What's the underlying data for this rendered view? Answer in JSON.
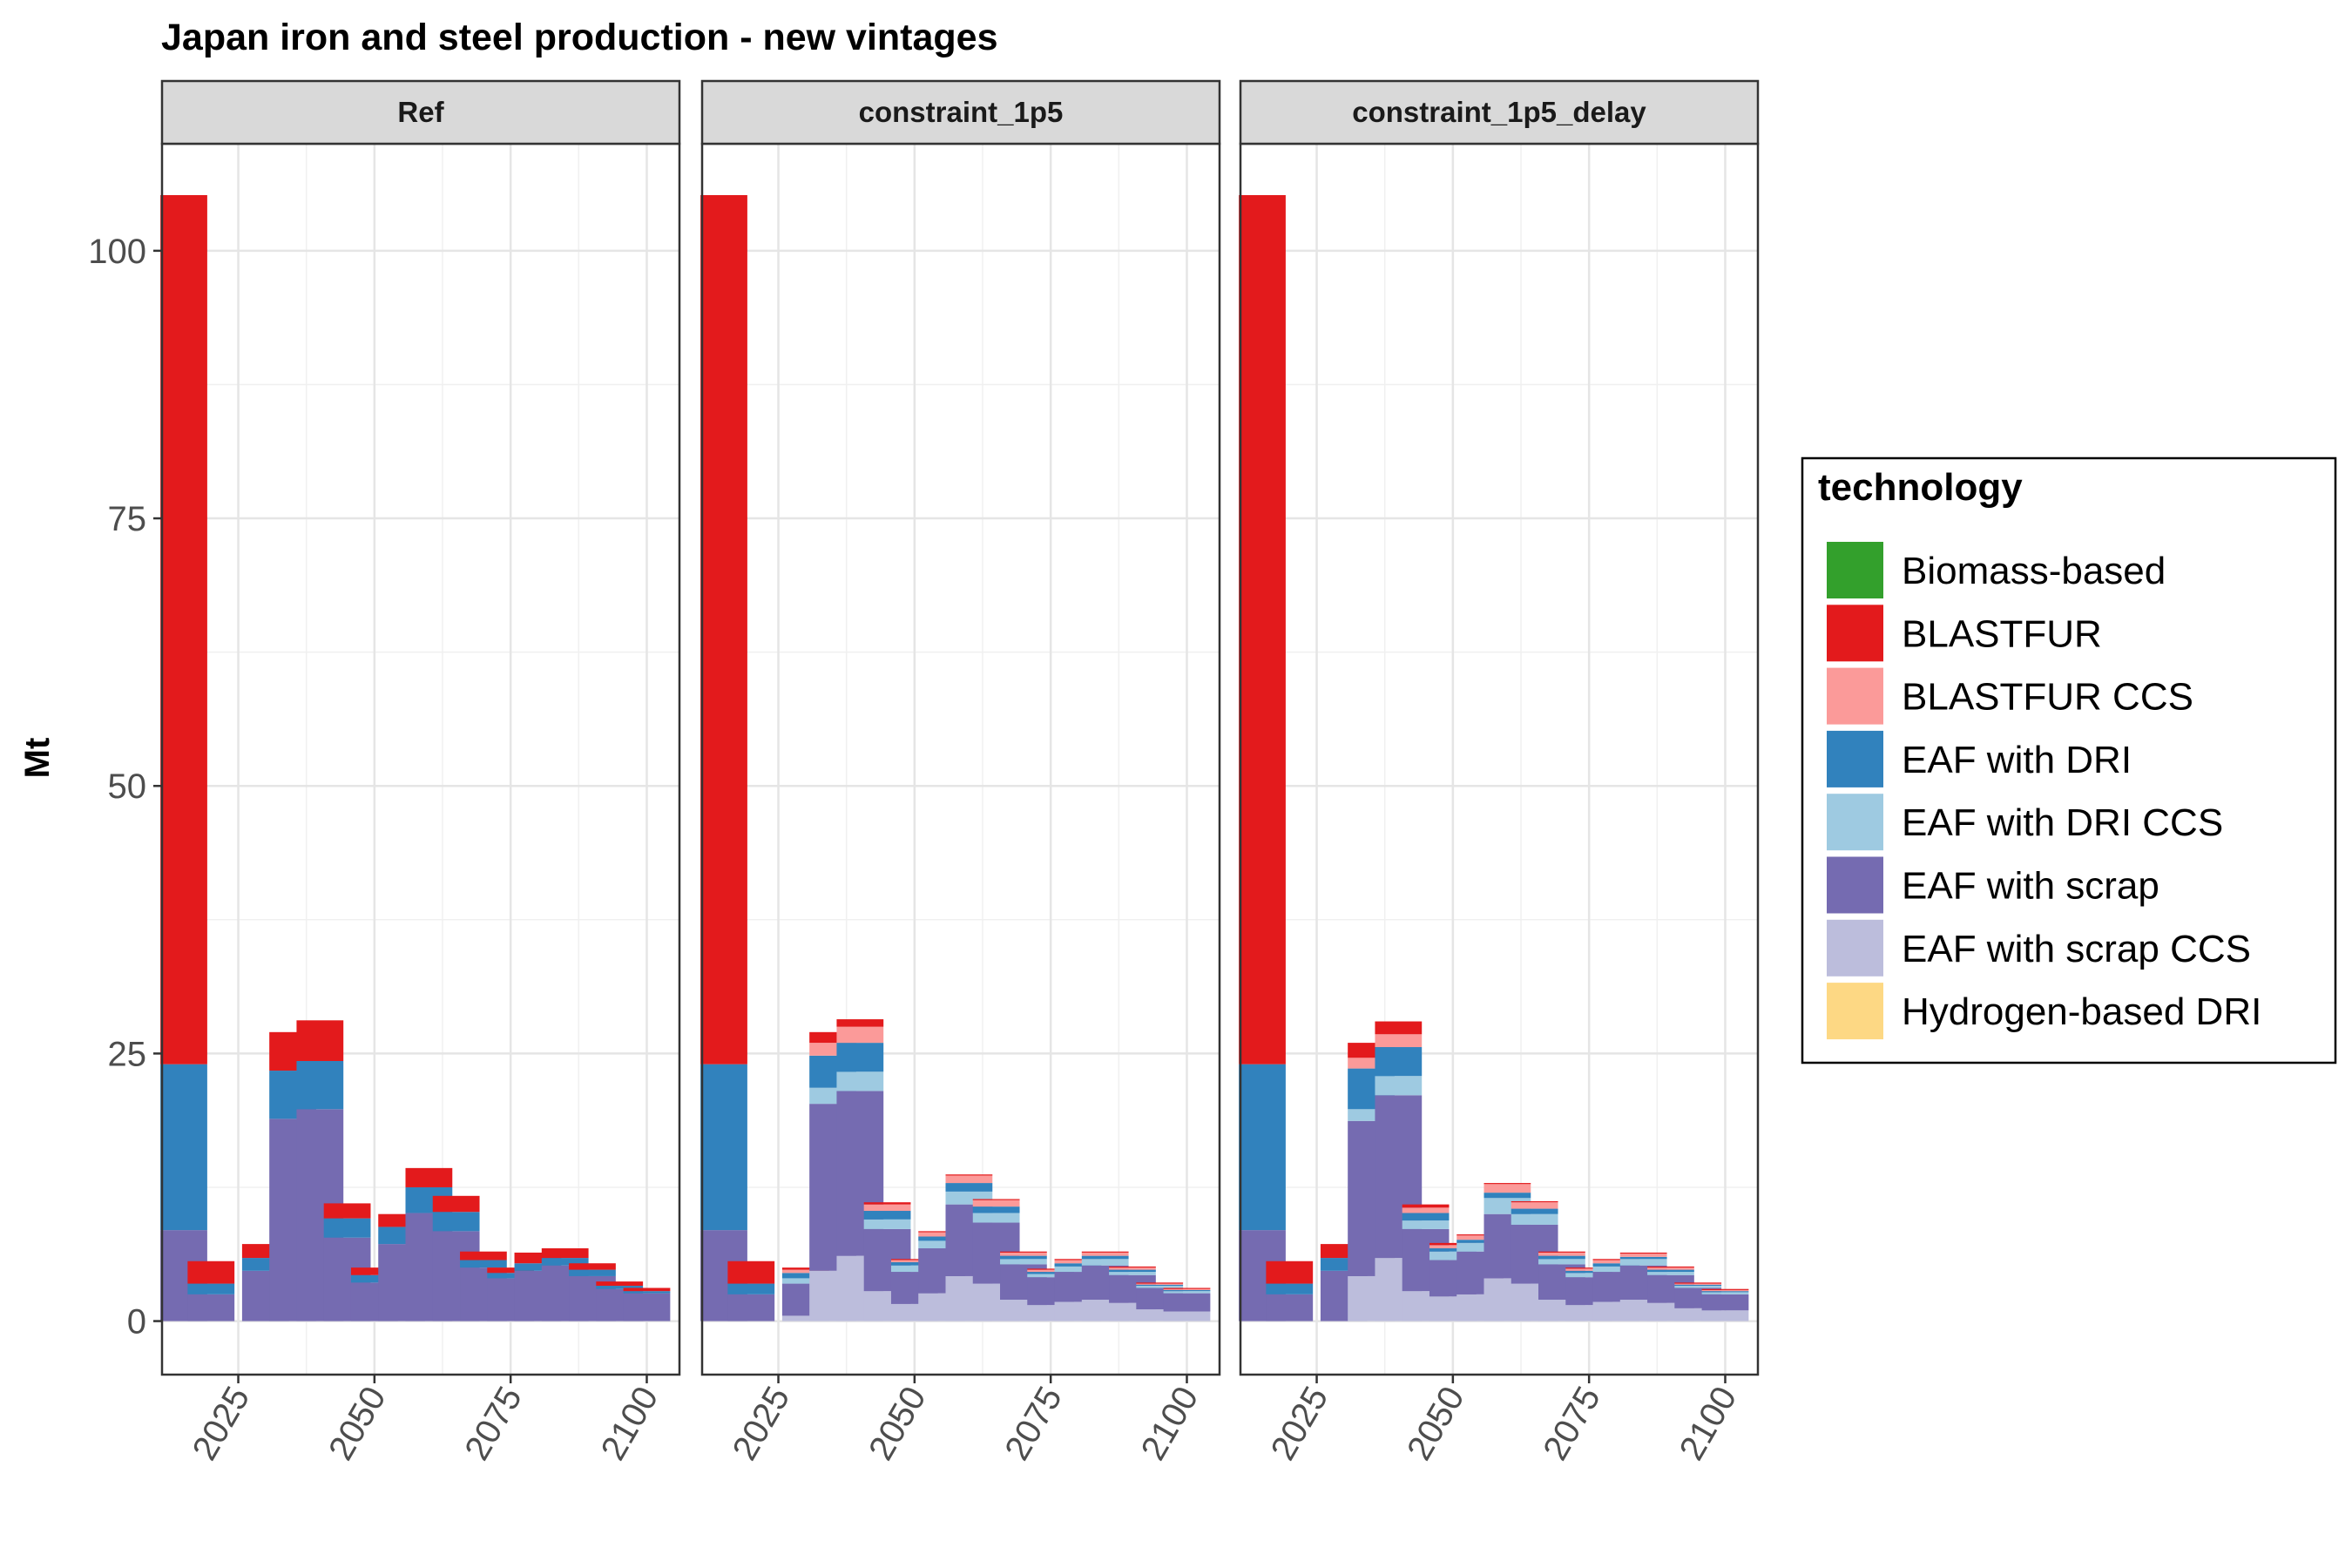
{
  "chart_data": {
    "type": "bar",
    "stacked": true,
    "faceted": true,
    "title": "Japan iron and steel production - new vintages",
    "ylabel": "Mt",
    "xlabel": "",
    "ylim": [
      -5,
      110
    ],
    "yticks": [
      0,
      25,
      50,
      75,
      100
    ],
    "xlim": [
      2011,
      2106
    ],
    "xticks": [
      2025,
      2050,
      2075,
      2100
    ],
    "grid": true,
    "legend_title": "technology",
    "legend_position": "right",
    "technologies": [
      {
        "name": "Biomass-based",
        "color": "#33a02c"
      },
      {
        "name": "BLASTFUR",
        "color": "#e31a1c"
      },
      {
        "name": "BLASTFUR CCS",
        "color": "#fb9a99"
      },
      {
        "name": "EAF with DRI",
        "color": "#3182bd"
      },
      {
        "name": "EAF with DRI CCS",
        "color": "#9ecae1"
      },
      {
        "name": "EAF with scrap",
        "color": "#756bb1"
      },
      {
        "name": "EAF with scrap CCS",
        "color": "#bcbddc"
      },
      {
        "name": "Hydrogen-based DRI",
        "color": "#fdd884"
      }
    ],
    "stack_order": [
      "EAF with scrap CCS",
      "EAF with scrap",
      "EAF with DRI CCS",
      "EAF with DRI",
      "BLASTFUR CCS",
      "BLASTFUR",
      "Biomass-based",
      "Hydrogen-based DRI"
    ],
    "x": [
      2015,
      2020,
      2030,
      2035,
      2040,
      2045,
      2050,
      2055,
      2060,
      2065,
      2070,
      2075,
      2080,
      2085,
      2090,
      2095,
      2100
    ],
    "panels": [
      {
        "name": "Ref",
        "series": [
          {
            "name": "EAF with scrap CCS",
            "values": [
              0,
              0,
              0,
              0,
              0,
              0,
              0,
              0,
              0,
              0,
              0,
              0,
              0,
              0,
              0,
              0,
              0
            ]
          },
          {
            "name": "EAF with scrap",
            "values": [
              8.5,
              2.5,
              4.7,
              18.9,
              19.8,
              7.8,
              3.6,
              7.2,
              10.1,
              8.4,
              5.0,
              4.0,
              4.7,
              5.2,
              4.2,
              3.0,
              2.6
            ]
          },
          {
            "name": "EAF with DRI CCS",
            "values": [
              0,
              0,
              0,
              0,
              0,
              0,
              0,
              0,
              0,
              0,
              0,
              0,
              0,
              0,
              0,
              0,
              0
            ]
          },
          {
            "name": "EAF with DRI",
            "values": [
              15.5,
              1.0,
              1.2,
              4.5,
              4.5,
              1.8,
              0.7,
              1.6,
              2.4,
              1.8,
              0.7,
              0.5,
              0.7,
              0.7,
              0.6,
              0.3,
              0.2
            ]
          },
          {
            "name": "BLASTFUR CCS",
            "values": [
              0,
              0,
              0,
              0,
              0,
              0,
              0,
              0,
              0,
              0,
              0,
              0,
              0,
              0,
              0,
              0,
              0
            ]
          },
          {
            "name": "BLASTFUR",
            "values": [
              81.2,
              2.1,
              1.3,
              3.6,
              3.8,
              1.4,
              0.7,
              1.2,
              1.8,
              1.5,
              0.8,
              0.5,
              1.0,
              0.9,
              0.6,
              0.4,
              0.3
            ]
          },
          {
            "name": "Biomass-based",
            "values": [
              0,
              0,
              0,
              0,
              0,
              0,
              0,
              0,
              0,
              0,
              0,
              0,
              0,
              0,
              0,
              0,
              0
            ]
          },
          {
            "name": "Hydrogen-based DRI",
            "values": [
              0,
              0,
              0,
              0,
              0,
              0,
              0,
              0,
              0,
              0,
              0,
              0,
              0,
              0,
              0,
              0,
              0
            ]
          }
        ]
      },
      {
        "name": "constraint_1p5",
        "series": [
          {
            "name": "EAF with scrap CCS",
            "values": [
              0,
              0,
              0.5,
              4.7,
              6.1,
              2.8,
              1.6,
              2.6,
              4.2,
              3.5,
              2.0,
              1.5,
              1.8,
              2.0,
              1.7,
              1.1,
              0.9
            ]
          },
          {
            "name": "EAF with scrap",
            "values": [
              8.5,
              2.5,
              3.0,
              15.6,
              15.4,
              5.8,
              3.0,
              4.2,
              6.7,
              5.7,
              3.3,
              2.6,
              2.8,
              3.2,
              2.6,
              2.0,
              1.7
            ]
          },
          {
            "name": "EAF with DRI CCS",
            "values": [
              0,
              0,
              0.5,
              1.5,
              1.8,
              0.9,
              0.6,
              0.7,
              1.2,
              0.9,
              0.5,
              0.3,
              0.5,
              0.6,
              0.3,
              0.2,
              0.2
            ]
          },
          {
            "name": "EAF with DRI",
            "values": [
              15.5,
              1.0,
              0.5,
              3.0,
              2.7,
              0.8,
              0.3,
              0.4,
              0.8,
              0.6,
              0.3,
              0.2,
              0.3,
              0.3,
              0.2,
              0.1,
              0.1
            ]
          },
          {
            "name": "BLASTFUR CCS",
            "values": [
              0,
              0,
              0.3,
              1.2,
              1.5,
              0.6,
              0.2,
              0.4,
              0.7,
              0.6,
              0.3,
              0.2,
              0.3,
              0.3,
              0.2,
              0.1,
              0.1
            ]
          },
          {
            "name": "BLASTFUR",
            "values": [
              81.2,
              2.1,
              0.2,
              1.0,
              0.7,
              0.2,
              0.1,
              0.1,
              0.1,
              0.1,
              0.1,
              0.1,
              0.1,
              0.1,
              0.1,
              0.1,
              0.1
            ]
          },
          {
            "name": "Biomass-based",
            "values": [
              0,
              0,
              0,
              0,
              0,
              0,
              0,
              0,
              0,
              0,
              0,
              0,
              0,
              0,
              0,
              0,
              0
            ]
          },
          {
            "name": "Hydrogen-based DRI",
            "values": [
              0,
              0,
              0,
              0,
              0,
              0,
              0,
              0,
              0,
              0,
              0,
              0,
              0,
              0,
              0,
              0,
              0
            ]
          }
        ]
      },
      {
        "name": "constraint_1p5_delay",
        "series": [
          {
            "name": "EAF with scrap CCS",
            "values": [
              0,
              0,
              0,
              4.2,
              5.9,
              2.8,
              2.3,
              2.5,
              4.0,
              3.5,
              2.0,
              1.5,
              1.8,
              2.0,
              1.7,
              1.2,
              1.0
            ]
          },
          {
            "name": "EAF with scrap",
            "values": [
              8.5,
              2.5,
              4.7,
              14.5,
              15.2,
              5.8,
              3.4,
              4.0,
              6.0,
              5.5,
              3.3,
              2.6,
              2.8,
              3.2,
              2.6,
              1.9,
              1.5
            ]
          },
          {
            "name": "EAF with DRI CCS",
            "values": [
              0,
              0,
              0,
              1.1,
              1.8,
              0.8,
              0.8,
              0.8,
              1.5,
              1.0,
              0.5,
              0.4,
              0.5,
              0.6,
              0.3,
              0.2,
              0.2
            ]
          },
          {
            "name": "EAF with DRI",
            "values": [
              15.5,
              1.0,
              1.2,
              3.8,
              2.7,
              0.7,
              0.3,
              0.3,
              0.5,
              0.5,
              0.3,
              0.2,
              0.3,
              0.2,
              0.2,
              0.1,
              0.1
            ]
          },
          {
            "name": "BLASTFUR CCS",
            "values": [
              0,
              0,
              0,
              1.0,
              1.2,
              0.5,
              0.3,
              0.4,
              0.8,
              0.6,
              0.3,
              0.2,
              0.3,
              0.3,
              0.2,
              0.1,
              0.1
            ]
          },
          {
            "name": "BLASTFUR",
            "values": [
              81.2,
              2.1,
              1.3,
              1.4,
              1.2,
              0.3,
              0.2,
              0.1,
              0.1,
              0.1,
              0.1,
              0.1,
              0.1,
              0.1,
              0.1,
              0.1,
              0.1
            ]
          },
          {
            "name": "Biomass-based",
            "values": [
              0,
              0,
              0,
              0,
              0,
              0,
              0,
              0,
              0,
              0,
              0,
              0,
              0,
              0,
              0,
              0,
              0
            ]
          },
          {
            "name": "Hydrogen-based DRI",
            "values": [
              0,
              0,
              0,
              0,
              0,
              0,
              0,
              0,
              0,
              0,
              0,
              0,
              0,
              0,
              0,
              0,
              0
            ]
          }
        ]
      }
    ]
  }
}
